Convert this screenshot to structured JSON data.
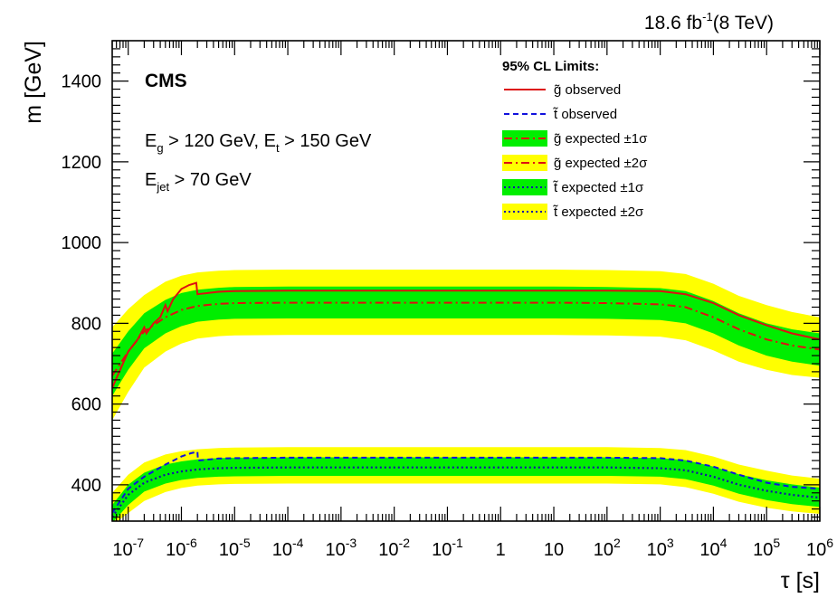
{
  "chart_data": {
    "type": "line",
    "lumi_label": "18.6 fb",
    "lumi_sup": "-1",
    "energy_label": "(8 TeV)",
    "experiment": "CMS",
    "cuts": {
      "eg_main": "E",
      "eg_sub": "g",
      "eg_rest": " > 120 GeV, E",
      "et_sub": "t",
      "et_rest": " > 150 GeV",
      "ejet_main": "E",
      "ejet_sub": "jet",
      "ejet_rest": " > 70 GeV"
    },
    "xlabel": "τ [s]",
    "ylabel": "m [GeV]",
    "x_scale": "log",
    "xlim": [
      5e-08,
      1000000
    ],
    "ylim": [
      310,
      1500
    ],
    "x_ticks": [
      {
        "value": 1e-07,
        "base": "10",
        "exp": "-7"
      },
      {
        "value": 1e-06,
        "base": "10",
        "exp": "-6"
      },
      {
        "value": 1e-05,
        "base": "10",
        "exp": "-5"
      },
      {
        "value": 0.0001,
        "base": "10",
        "exp": "-4"
      },
      {
        "value": 0.001,
        "base": "10",
        "exp": "-3"
      },
      {
        "value": 0.01,
        "base": "10",
        "exp": "-2"
      },
      {
        "value": 0.1,
        "base": "10",
        "exp": "-1"
      },
      {
        "value": 1,
        "base": "1",
        "exp": ""
      },
      {
        "value": 10,
        "base": "10",
        "exp": ""
      },
      {
        "value": 100,
        "base": "10",
        "exp": "2"
      },
      {
        "value": 1000,
        "base": "10",
        "exp": "3"
      },
      {
        "value": 10000,
        "base": "10",
        "exp": "4"
      },
      {
        "value": 100000,
        "base": "10",
        "exp": "5"
      },
      {
        "value": 1000000,
        "base": "10",
        "exp": "6"
      }
    ],
    "y_ticks": [
      400,
      600,
      800,
      1000,
      1200,
      1400
    ],
    "legend": {
      "title": "95% CL Limits:",
      "position": "top-right",
      "entries": [
        {
          "label": "g̃ observed",
          "line_color": "#dd1111",
          "style": "solid",
          "band": null
        },
        {
          "label": "t̃ observed",
          "line_color": "#1111dd",
          "style": "dashed",
          "band": null
        },
        {
          "label": "g̃ expected ±1σ",
          "line_color": "#dd1111",
          "style": "dashdot",
          "band": "#00ee00"
        },
        {
          "label": "g̃ expected ±2σ",
          "line_color": "#dd1111",
          "style": "dashdot",
          "band": "#ffff00"
        },
        {
          "label": "t̃ expected ±1σ",
          "line_color": "#1111aa",
          "style": "dotted",
          "band": "#00ee00"
        },
        {
          "label": "t̃ expected ±2σ",
          "line_color": "#1111aa",
          "style": "dotted",
          "band": "#ffff00"
        }
      ]
    },
    "colors": {
      "band_1sigma": "#00ee00",
      "band_2sigma": "#ffff00",
      "gluino": "#dd1111",
      "stop": "#1111dd",
      "stop_expected": "#1111aa"
    },
    "series": [
      {
        "name": "g̃ expected",
        "x": [
          5e-08,
          1e-07,
          2e-07,
          5e-07,
          1e-06,
          2e-06,
          5e-06,
          1e-05,
          0.0001,
          0.001,
          0.01,
          0.1,
          1,
          10,
          100,
          1000,
          3000,
          10000,
          30000,
          100000,
          300000,
          1000000
        ],
        "y": [
          670,
          730,
          780,
          815,
          833,
          843,
          848,
          850,
          851,
          851,
          851,
          851,
          851,
          851,
          850,
          847,
          840,
          815,
          785,
          760,
          745,
          735
        ],
        "band1_lo": [
          620,
          685,
          738,
          775,
          793,
          804,
          809,
          811,
          812,
          812,
          812,
          812,
          812,
          812,
          811,
          808,
          800,
          775,
          745,
          720,
          705,
          695
        ],
        "band1_hi": [
          725,
          780,
          825,
          858,
          875,
          883,
          888,
          890,
          891,
          891,
          891,
          891,
          891,
          891,
          890,
          887,
          880,
          855,
          825,
          800,
          785,
          775
        ],
        "band2_lo": [
          560,
          630,
          690,
          730,
          750,
          762,
          768,
          770,
          771,
          771,
          771,
          771,
          771,
          771,
          770,
          767,
          758,
          733,
          705,
          685,
          672,
          665
        ],
        "band2_hi": [
          790,
          835,
          870,
          903,
          918,
          926,
          930,
          932,
          933,
          933,
          933,
          933,
          933,
          933,
          932,
          929,
          922,
          898,
          868,
          845,
          828,
          815
        ]
      },
      {
        "name": "g̃ observed",
        "x": [
          5e-08,
          1e-07,
          1.5e-07,
          2e-07,
          2.2e-07,
          3e-07,
          4e-07,
          5e-07,
          5.5e-07,
          7e-07,
          1e-06,
          1.4e-06,
          1.9e-06,
          2e-06,
          5e-06,
          1e-05,
          0.0001,
          0.001,
          0.01,
          0.1,
          1,
          10,
          100,
          1000,
          3000,
          10000,
          30000,
          100000,
          300000,
          1000000
        ],
        "y": [
          640,
          730,
          760,
          790,
          775,
          800,
          815,
          845,
          830,
          860,
          885,
          895,
          900,
          872,
          878,
          880,
          881,
          881,
          881,
          881,
          881,
          881,
          881,
          880,
          872,
          850,
          820,
          795,
          775,
          760
        ]
      },
      {
        "name": "t̃ expected",
        "x": [
          5e-08,
          1e-07,
          2e-07,
          5e-07,
          1e-06,
          2e-06,
          5e-06,
          1e-05,
          0.0001,
          0.001,
          0.01,
          0.1,
          1,
          10,
          100,
          1000,
          3000,
          10000,
          30000,
          100000,
          300000,
          1000000
        ],
        "y": [
          320,
          375,
          405,
          425,
          433,
          438,
          441,
          442,
          443,
          443,
          443,
          443,
          443,
          443,
          443,
          441,
          436,
          420,
          400,
          385,
          375,
          368
        ],
        "band1_lo": [
          305,
          350,
          383,
          403,
          412,
          417,
          420,
          421,
          422,
          422,
          422,
          422,
          422,
          422,
          422,
          420,
          414,
          398,
          378,
          362,
          352,
          345
        ],
        "band1_hi": [
          350,
          400,
          430,
          450,
          458,
          463,
          466,
          467,
          468,
          468,
          468,
          468,
          468,
          468,
          468,
          466,
          461,
          445,
          426,
          411,
          401,
          393
        ],
        "band2_lo": [
          300,
          330,
          360,
          382,
          392,
          398,
          401,
          402,
          403,
          403,
          403,
          403,
          403,
          403,
          403,
          401,
          394,
          378,
          358,
          343,
          334,
          328
        ],
        "band2_hi": [
          380,
          425,
          455,
          475,
          483,
          488,
          491,
          492,
          493,
          493,
          493,
          493,
          493,
          493,
          493,
          491,
          486,
          470,
          450,
          435,
          423,
          415
        ]
      },
      {
        "name": "t̃ observed",
        "x": [
          5e-08,
          1e-07,
          2e-07,
          5e-07,
          1e-06,
          1.5e-06,
          2e-06,
          2.05e-06,
          5e-06,
          1e-05,
          0.0001,
          0.001,
          0.01,
          0.1,
          1,
          10,
          100,
          1000,
          3000,
          10000,
          30000,
          100000,
          300000,
          1000000
        ],
        "y": [
          330,
          390,
          420,
          450,
          470,
          478,
          482,
          460,
          465,
          466,
          467,
          467,
          467,
          467,
          467,
          467,
          467,
          466,
          460,
          445,
          425,
          405,
          395,
          390
        ]
      }
    ]
  }
}
